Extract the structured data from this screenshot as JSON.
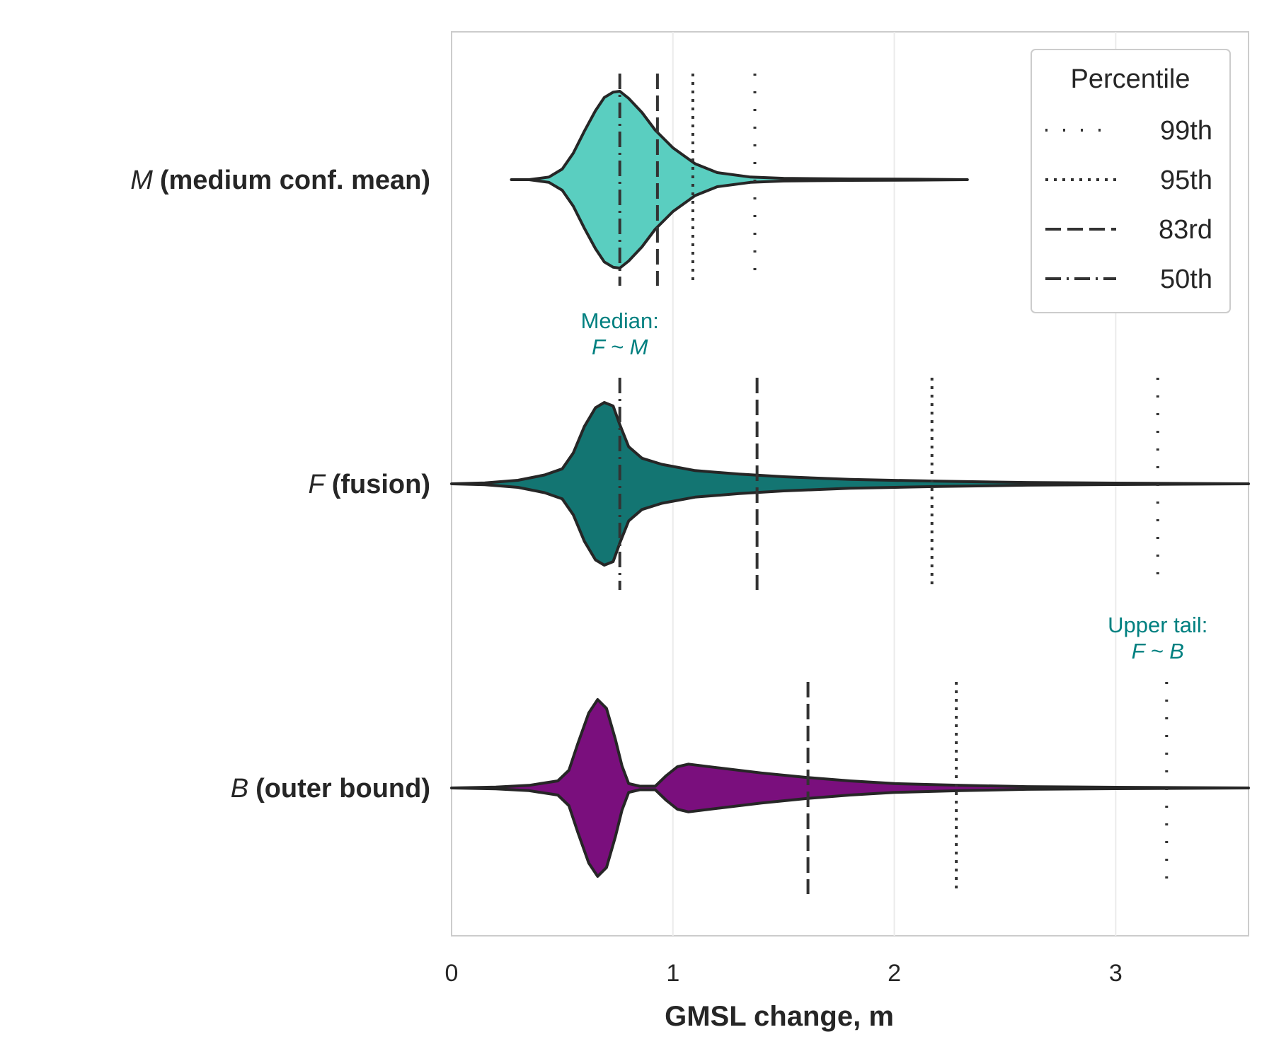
{
  "chart_data": {
    "type": "violin",
    "orientation": "horizontal",
    "xlabel": "GMSL change, m",
    "xlim": [
      0,
      3.6
    ],
    "xticks": [
      {
        "value": 0,
        "label": "0"
      },
      {
        "value": 1,
        "label": "1"
      },
      {
        "value": 2,
        "label": "2"
      },
      {
        "value": 3,
        "label": "3"
      }
    ],
    "grid": "vertical",
    "categories": [
      {
        "id": "M",
        "symbol": "M",
        "label": "(medium conf. mean)",
        "color": "#5ACEC0",
        "percentiles": {
          "p50": 0.76,
          "p83": 0.93,
          "p95": 1.09,
          "p99": 1.37
        },
        "density": [
          [
            0.27,
            0.0
          ],
          [
            0.35,
            0.0
          ],
          [
            0.44,
            0.03
          ],
          [
            0.5,
            0.12
          ],
          [
            0.55,
            0.3
          ],
          [
            0.6,
            0.55
          ],
          [
            0.65,
            0.78
          ],
          [
            0.69,
            0.93
          ],
          [
            0.73,
            0.99
          ],
          [
            0.76,
            1.0
          ],
          [
            0.8,
            0.92
          ],
          [
            0.86,
            0.76
          ],
          [
            0.92,
            0.56
          ],
          [
            1.0,
            0.36
          ],
          [
            1.1,
            0.18
          ],
          [
            1.2,
            0.08
          ],
          [
            1.35,
            0.03
          ],
          [
            1.5,
            0.015
          ],
          [
            1.8,
            0.008
          ],
          [
            2.1,
            0.005
          ],
          [
            2.33,
            0.0
          ]
        ]
      },
      {
        "id": "F",
        "symbol": "F",
        "label": "(fusion)",
        "color": "#137572",
        "percentiles": {
          "p50": 0.76,
          "p83": 1.38,
          "p95": 2.17,
          "p99": 3.19
        },
        "density": [
          [
            0.0,
            0.0
          ],
          [
            0.15,
            0.01
          ],
          [
            0.3,
            0.04
          ],
          [
            0.42,
            0.1
          ],
          [
            0.5,
            0.17
          ],
          [
            0.55,
            0.35
          ],
          [
            0.6,
            0.65
          ],
          [
            0.65,
            0.86
          ],
          [
            0.69,
            0.92
          ],
          [
            0.73,
            0.88
          ],
          [
            0.76,
            0.67
          ],
          [
            0.8,
            0.42
          ],
          [
            0.86,
            0.29
          ],
          [
            0.95,
            0.22
          ],
          [
            1.1,
            0.15
          ],
          [
            1.3,
            0.11
          ],
          [
            1.5,
            0.08
          ],
          [
            1.8,
            0.05
          ],
          [
            2.2,
            0.03
          ],
          [
            2.6,
            0.015
          ],
          [
            3.0,
            0.008
          ],
          [
            3.6,
            0.0
          ]
        ]
      },
      {
        "id": "B",
        "symbol": "B",
        "label": "(outer bound)",
        "color": "#7A0F7D",
        "percentiles": {
          "p83": 1.61,
          "p95": 2.28,
          "p99": 3.23
        },
        "density": [
          [
            0.0,
            0.0
          ],
          [
            0.2,
            0.01
          ],
          [
            0.35,
            0.03
          ],
          [
            0.48,
            0.08
          ],
          [
            0.53,
            0.2
          ],
          [
            0.57,
            0.5
          ],
          [
            0.62,
            0.85
          ],
          [
            0.66,
            1.0
          ],
          [
            0.7,
            0.9
          ],
          [
            0.74,
            0.55
          ],
          [
            0.77,
            0.25
          ],
          [
            0.8,
            0.05
          ],
          [
            0.85,
            0.02
          ],
          [
            0.92,
            0.02
          ],
          [
            0.97,
            0.14
          ],
          [
            1.02,
            0.24
          ],
          [
            1.07,
            0.27
          ],
          [
            1.2,
            0.23
          ],
          [
            1.4,
            0.17
          ],
          [
            1.6,
            0.12
          ],
          [
            1.8,
            0.08
          ],
          [
            2.0,
            0.05
          ],
          [
            2.3,
            0.03
          ],
          [
            2.6,
            0.015
          ],
          [
            3.0,
            0.008
          ],
          [
            3.6,
            0.0
          ]
        ]
      }
    ],
    "legend": {
      "title": "Percentile",
      "position": "top-right",
      "entries": [
        {
          "key": "p99",
          "label": "99th"
        },
        {
          "key": "p95",
          "label": "95th"
        },
        {
          "key": "p83",
          "label": "83rd"
        },
        {
          "key": "p50",
          "label": "50th"
        }
      ]
    },
    "annotations": [
      {
        "category": "F",
        "x": 0.76,
        "line1": "Median:",
        "line2": "F ~ M"
      },
      {
        "category": "B",
        "x": 3.19,
        "line1": "Upper tail:",
        "line2": "F ~ B"
      }
    ]
  }
}
